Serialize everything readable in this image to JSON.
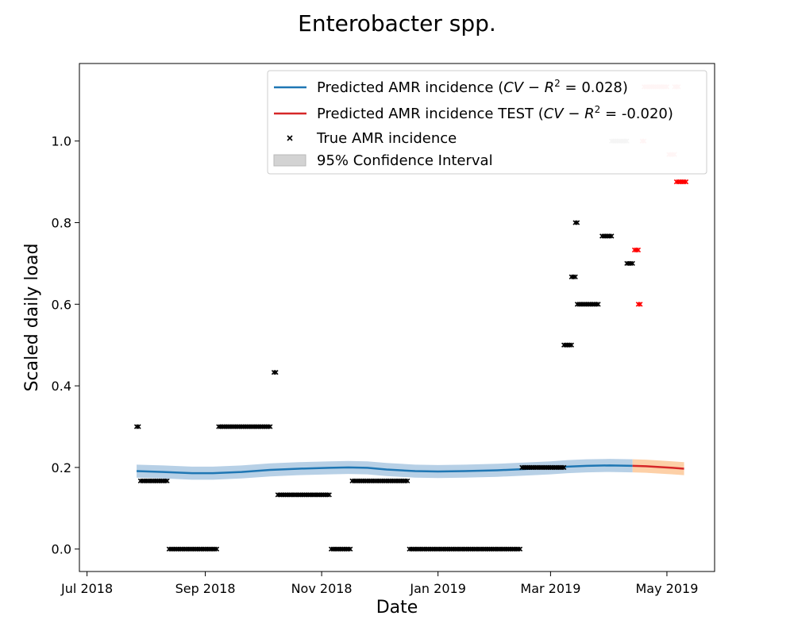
{
  "chart_data": {
    "type": "line",
    "title": "Enterobacter spp.",
    "xlabel": "Date",
    "ylabel": "Scaled daily load",
    "xlim": [
      "2018-06-27",
      "2019-05-26"
    ],
    "ylim": [
      -0.055,
      1.19
    ],
    "x_ticks": [
      {
        "date": "2018-07-01",
        "label": "Jul 2018"
      },
      {
        "date": "2018-09-01",
        "label": "Sep 2018"
      },
      {
        "date": "2018-11-01",
        "label": "Nov 2018"
      },
      {
        "date": "2019-01-01",
        "label": "Jan 2019"
      },
      {
        "date": "2019-03-01",
        "label": "Mar 2019"
      },
      {
        "date": "2019-05-01",
        "label": "May 2019"
      }
    ],
    "y_ticks": [
      {
        "value": 0.0,
        "label": "0.0"
      },
      {
        "value": 0.2,
        "label": "0.2"
      },
      {
        "value": 0.4,
        "label": "0.4"
      },
      {
        "value": 0.6,
        "label": "0.6"
      },
      {
        "value": 0.8,
        "label": "0.8"
      },
      {
        "value": 1.0,
        "label": "1.0"
      }
    ],
    "grid": false,
    "legend": {
      "placement": "top-right",
      "entries": [
        {
          "label_main": "Predicted AMR incidence (",
          "label_math": "CV − R",
          "label_sup": "2",
          "label_tail": " = 0.028)",
          "kind": "line",
          "color": "#1f77b4"
        },
        {
          "label_main": "Predicted AMR incidence TEST (",
          "label_math": "CV − R",
          "label_sup": "2",
          "label_tail": " = -0.020)",
          "kind": "line",
          "color": "#d62728"
        },
        {
          "label_main": "True AMR incidence",
          "kind": "marker",
          "color": "#000000"
        },
        {
          "label_main": "95% Confidence Interval",
          "kind": "patch",
          "color": "#d3d3d3"
        }
      ]
    },
    "series": [
      {
        "name": "Predicted AMR incidence",
        "kind": "line",
        "color": "#1f77b4",
        "band_color": "#aac8e2",
        "band_halfwidth": 0.016,
        "points": [
          [
            "2018-07-27",
            0.191
          ],
          [
            "2018-08-10",
            0.189
          ],
          [
            "2018-08-25",
            0.186
          ],
          [
            "2018-09-05",
            0.186
          ],
          [
            "2018-09-20",
            0.189
          ],
          [
            "2018-10-05",
            0.194
          ],
          [
            "2018-10-20",
            0.197
          ],
          [
            "2018-11-05",
            0.199
          ],
          [
            "2018-11-15",
            0.2
          ],
          [
            "2018-11-25",
            0.199
          ],
          [
            "2018-12-05",
            0.195
          ],
          [
            "2018-12-20",
            0.191
          ],
          [
            "2019-01-01",
            0.19
          ],
          [
            "2019-01-15",
            0.191
          ],
          [
            "2019-02-01",
            0.193
          ],
          [
            "2019-02-15",
            0.196
          ],
          [
            "2019-03-01",
            0.199
          ],
          [
            "2019-03-10",
            0.202
          ],
          [
            "2019-03-20",
            0.204
          ],
          [
            "2019-04-01",
            0.205
          ],
          [
            "2019-04-13",
            0.204
          ]
        ]
      },
      {
        "name": "Predicted AMR incidence TEST",
        "kind": "line",
        "color": "#d62728",
        "band_color": "#fdc898",
        "band_halfwidth": 0.016,
        "points": [
          [
            "2019-04-13",
            0.204
          ],
          [
            "2019-04-20",
            0.203
          ],
          [
            "2019-04-27",
            0.201
          ],
          [
            "2019-05-04",
            0.199
          ],
          [
            "2019-05-10",
            0.197
          ]
        ]
      },
      {
        "name": "True AMR incidence",
        "kind": "scatter",
        "segments": [
          {
            "start": "2018-07-27",
            "end": "2018-07-28",
            "value": 0.3,
            "color": "#000000"
          },
          {
            "start": "2018-07-29",
            "end": "2018-08-12",
            "value": 0.167,
            "color": "#000000"
          },
          {
            "start": "2018-08-13",
            "end": "2018-09-07",
            "value": 0.0,
            "color": "#000000"
          },
          {
            "start": "2018-09-08",
            "end": "2018-10-05",
            "value": 0.3,
            "color": "#000000"
          },
          {
            "start": "2018-10-07",
            "end": "2018-10-08",
            "value": 0.433,
            "color": "#000000"
          },
          {
            "start": "2018-10-09",
            "end": "2018-11-05",
            "value": 0.133,
            "color": "#000000"
          },
          {
            "start": "2018-11-06",
            "end": "2018-11-16",
            "value": 0.0,
            "color": "#000000"
          },
          {
            "start": "2018-11-17",
            "end": "2018-12-16",
            "value": 0.167,
            "color": "#000000"
          },
          {
            "start": "2018-12-17",
            "end": "2019-02-13",
            "value": 0.0,
            "color": "#000000"
          },
          {
            "start": "2019-02-14",
            "end": "2019-03-08",
            "value": 0.2,
            "color": "#000000"
          },
          {
            "start": "2019-03-08",
            "end": "2019-03-12",
            "value": 0.5,
            "color": "#000000"
          },
          {
            "start": "2019-03-12",
            "end": "2019-03-14",
            "value": 0.667,
            "color": "#000000"
          },
          {
            "start": "2019-03-14",
            "end": "2019-03-15",
            "value": 0.8,
            "color": "#000000"
          },
          {
            "start": "2019-03-15",
            "end": "2019-03-26",
            "value": 0.6,
            "color": "#000000"
          },
          {
            "start": "2019-03-28",
            "end": "2019-04-02",
            "value": 0.767,
            "color": "#000000"
          },
          {
            "start": "2019-04-02",
            "end": "2019-04-10",
            "value": 1.0,
            "color": "#bdbdbd"
          },
          {
            "start": "2019-04-10",
            "end": "2019-04-13",
            "value": 0.7,
            "color": "#000000"
          },
          {
            "start": "2019-04-14",
            "end": "2019-04-16",
            "value": 0.733,
            "color": "#ff0000"
          },
          {
            "start": "2019-04-16",
            "end": "2019-04-17",
            "value": 0.6,
            "color": "#ff0000"
          },
          {
            "start": "2019-04-18",
            "end": "2019-04-19",
            "value": 1.0,
            "color": "#ffbdbd"
          },
          {
            "start": "2019-04-19",
            "end": "2019-05-01",
            "value": 1.133,
            "color": "#ffbdbd"
          },
          {
            "start": "2019-05-02",
            "end": "2019-05-05",
            "value": 0.967,
            "color": "#ffbdbd"
          },
          {
            "start": "2019-05-05",
            "end": "2019-05-07",
            "value": 1.133,
            "color": "#ffbdbd"
          },
          {
            "start": "2019-05-06",
            "end": "2019-05-11",
            "value": 0.9,
            "color": "#ff0000"
          }
        ]
      }
    ]
  }
}
